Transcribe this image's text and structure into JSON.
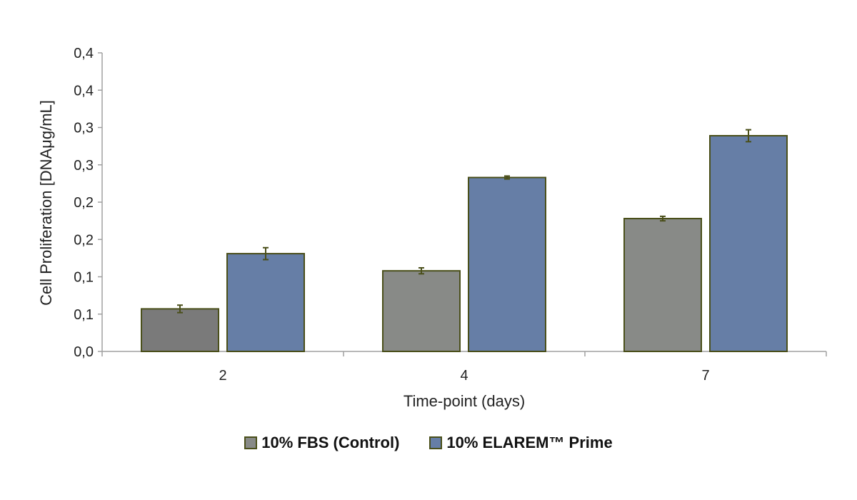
{
  "chart_data": {
    "type": "bar",
    "xlabel": "Time-point (days)",
    "ylabel": "Cell Proliferation [DNAμg/mL]",
    "categories": [
      "2",
      "4",
      "7"
    ],
    "y_ticks": [
      {
        "value": 0.0,
        "label": "0,0"
      },
      {
        "value": 0.05,
        "label": "0,1"
      },
      {
        "value": 0.1,
        "label": "0,1"
      },
      {
        "value": 0.15,
        "label": "0,2"
      },
      {
        "value": 0.2,
        "label": "0,2"
      },
      {
        "value": 0.25,
        "label": "0,3"
      },
      {
        "value": 0.3,
        "label": "0,3"
      },
      {
        "value": 0.35,
        "label": "0,4"
      },
      {
        "value": 0.4,
        "label": "0,4"
      }
    ],
    "ylim": [
      0,
      0.4
    ],
    "grid": false,
    "legend_position": "bottom",
    "series": [
      {
        "name": "10% FBS (Control)",
        "color": "#888a87",
        "values": [
          0.057,
          0.108,
          0.178
        ],
        "errors": [
          0.005,
          0.004,
          0.003
        ]
      },
      {
        "name": "10% ELAREM™ Prime",
        "color": "#667ea6",
        "values": [
          0.131,
          0.233,
          0.289
        ],
        "errors": [
          0.008,
          0.002,
          0.008
        ]
      }
    ],
    "bar_border_color": "#4a4f1a",
    "error_bar_color": "#4a4f1a",
    "axis_color": "#a0a0a0"
  }
}
